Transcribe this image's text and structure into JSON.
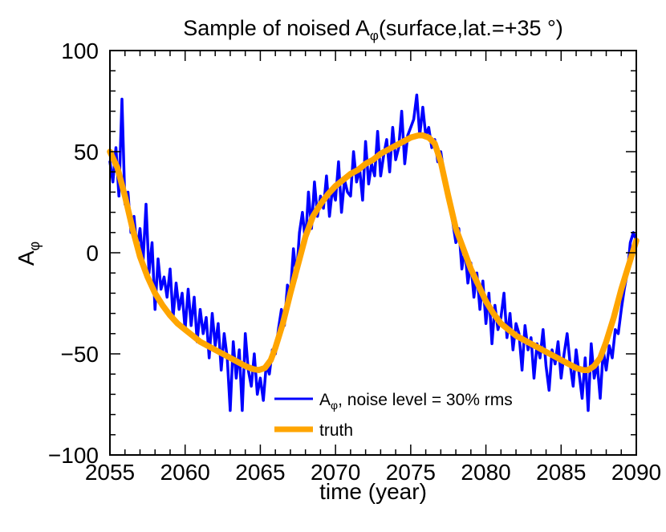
{
  "chart_data": {
    "type": "line",
    "title": "Sample of noised Aφ(surface,lat.=+35 °)",
    "title_parts": {
      "pre": "Sample of noised A",
      "sub": "φ",
      "post": "(surface,lat.=+35 °)"
    },
    "xlabel": "time (year)",
    "ylabel": {
      "main": "A",
      "sub": "φ"
    },
    "xlim": [
      2055,
      2090
    ],
    "ylim": [
      -100,
      100
    ],
    "xticks": [
      2055,
      2060,
      2065,
      2070,
      2075,
      2080,
      2085,
      2090
    ],
    "xtick_labels": [
      "2055",
      "2060",
      "2065",
      "2070",
      "2075",
      "2080",
      "2085",
      "2090"
    ],
    "yticks": [
      -100,
      -50,
      0,
      50,
      100
    ],
    "ytick_labels": [
      "−100",
      "−50",
      "0",
      "50",
      "100"
    ],
    "legend_position": "bottom-center",
    "series": [
      {
        "name": "Aφ, noise level = 30% rms",
        "legend_parts": {
          "main": "A",
          "sub": "φ",
          "rest": ", noise level = 30% rms"
        },
        "color": "#0000ff",
        "x": [
          2055.0,
          2055.2,
          2055.4,
          2055.6,
          2055.8,
          2056.0,
          2056.2,
          2056.4,
          2056.6,
          2056.8,
          2057.0,
          2057.2,
          2057.4,
          2057.6,
          2057.8,
          2058.0,
          2058.2,
          2058.4,
          2058.6,
          2058.8,
          2059.0,
          2059.2,
          2059.4,
          2059.6,
          2059.8,
          2060.0,
          2060.2,
          2060.4,
          2060.6,
          2060.8,
          2061.0,
          2061.2,
          2061.4,
          2061.6,
          2061.8,
          2062.0,
          2062.2,
          2062.4,
          2062.6,
          2062.8,
          2063.0,
          2063.2,
          2063.4,
          2063.6,
          2063.8,
          2064.0,
          2064.2,
          2064.4,
          2064.6,
          2064.8,
          2065.0,
          2065.2,
          2065.4,
          2065.6,
          2065.8,
          2066.0,
          2066.2,
          2066.4,
          2066.6,
          2066.8,
          2067.0,
          2067.2,
          2067.4,
          2067.6,
          2067.8,
          2068.0,
          2068.2,
          2068.4,
          2068.6,
          2068.8,
          2069.0,
          2069.2,
          2069.4,
          2069.6,
          2069.8,
          2070.0,
          2070.2,
          2070.4,
          2070.6,
          2070.8,
          2071.0,
          2071.2,
          2071.4,
          2071.6,
          2071.8,
          2072.0,
          2072.2,
          2072.4,
          2072.6,
          2072.8,
          2073.0,
          2073.2,
          2073.4,
          2073.6,
          2073.8,
          2074.0,
          2074.2,
          2074.4,
          2074.6,
          2074.8,
          2075.0,
          2075.2,
          2075.4,
          2075.6,
          2075.8,
          2076.0,
          2076.2,
          2076.4,
          2076.6,
          2076.8,
          2077.0,
          2077.2,
          2077.4,
          2077.6,
          2077.8,
          2078.0,
          2078.2,
          2078.4,
          2078.6,
          2078.8,
          2079.0,
          2079.2,
          2079.4,
          2079.6,
          2079.8,
          2080.0,
          2080.2,
          2080.4,
          2080.6,
          2080.8,
          2081.0,
          2081.2,
          2081.4,
          2081.6,
          2081.8,
          2082.0,
          2082.2,
          2082.4,
          2082.6,
          2082.8,
          2083.0,
          2083.2,
          2083.4,
          2083.6,
          2083.8,
          2084.0,
          2084.2,
          2084.4,
          2084.6,
          2084.8,
          2085.0,
          2085.2,
          2085.4,
          2085.6,
          2085.8,
          2086.0,
          2086.2,
          2086.4,
          2086.6,
          2086.8,
          2087.0,
          2087.2,
          2087.4,
          2087.6,
          2087.8,
          2088.0,
          2088.2,
          2088.4,
          2088.6,
          2088.8,
          2089.0,
          2089.2,
          2089.4,
          2089.6,
          2089.8,
          2090.0
        ],
        "y": [
          45,
          35,
          52,
          28,
          76,
          24,
          30,
          10,
          18,
          2,
          12,
          -5,
          24,
          -10,
          5,
          -28,
          -3,
          -18,
          -12,
          -22,
          -8,
          -32,
          -15,
          -28,
          -20,
          -38,
          -18,
          -36,
          -22,
          -44,
          -28,
          -40,
          -32,
          -52,
          -30,
          -46,
          -35,
          -58,
          -40,
          -52,
          -78,
          -44,
          -62,
          -48,
          -78,
          -40,
          -58,
          -66,
          -50,
          -70,
          -62,
          -73,
          -55,
          -60,
          -48,
          -50,
          -38,
          -28,
          -36,
          -16,
          -20,
          2,
          -12,
          10,
          20,
          5,
          30,
          12,
          35,
          18,
          28,
          22,
          38,
          18,
          32,
          26,
          45,
          20,
          36,
          30,
          28,
          50,
          35,
          42,
          26,
          55,
          34,
          44,
          38,
          60,
          38,
          48,
          56,
          40,
          62,
          46,
          52,
          70,
          44,
          58,
          62,
          66,
          78,
          58,
          72,
          58,
          62,
          52,
          56,
          45,
          50,
          40,
          30,
          22,
          15,
          5,
          12,
          -8,
          2,
          -15,
          -5,
          -22,
          -10,
          -28,
          -14,
          -35,
          -20,
          -45,
          -26,
          -38,
          -32,
          -20,
          -42,
          -30,
          -48,
          -35,
          -40,
          -58,
          -36,
          -48,
          -42,
          -62,
          -45,
          -52,
          -38,
          -56,
          -68,
          -48,
          -55,
          -44,
          -62,
          -50,
          -40,
          -55,
          -66,
          -48,
          -60,
          -72,
          -52,
          -78,
          -45,
          -62,
          -55,
          -72,
          -48,
          -58,
          -46,
          -52,
          -38,
          -40,
          -28,
          -18,
          -10,
          5,
          10,
          6
        ]
      },
      {
        "name": "truth",
        "color": "#ffa500",
        "x": [
          2055.0,
          2055.5,
          2056.0,
          2056.5,
          2057.0,
          2057.5,
          2058.0,
          2058.5,
          2059.0,
          2059.5,
          2060.0,
          2060.5,
          2061.0,
          2061.5,
          2062.0,
          2062.5,
          2063.0,
          2063.5,
          2064.0,
          2064.5,
          2064.9,
          2065.3,
          2065.7,
          2066.0,
          2066.5,
          2067.0,
          2067.5,
          2068.0,
          2068.5,
          2069.0,
          2069.5,
          2070.0,
          2070.5,
          2071.0,
          2071.5,
          2072.0,
          2072.5,
          2073.0,
          2073.5,
          2074.0,
          2074.5,
          2075.0,
          2075.5,
          2075.8,
          2076.2,
          2076.6,
          2077.0,
          2077.5,
          2078.0,
          2078.5,
          2079.0,
          2079.5,
          2080.0,
          2080.5,
          2081.0,
          2081.5,
          2082.0,
          2082.5,
          2083.0,
          2083.5,
          2084.0,
          2084.5,
          2085.0,
          2085.5,
          2086.0,
          2086.5,
          2086.8,
          2087.2,
          2087.6,
          2088.0,
          2088.5,
          2089.0,
          2089.5,
          2090.0
        ],
        "y": [
          50,
          42,
          28,
          12,
          -2,
          -12,
          -20,
          -26,
          -31,
          -35,
          -38,
          -41,
          -44,
          -46,
          -48,
          -50,
          -52,
          -54,
          -56,
          -57.5,
          -58,
          -57,
          -53,
          -47,
          -35,
          -20,
          -6,
          8,
          18,
          24,
          29,
          33,
          36,
          39,
          41,
          44,
          46,
          49,
          51,
          53,
          55,
          57,
          58,
          58,
          57,
          54,
          45,
          28,
          12,
          2,
          -8,
          -16,
          -24,
          -30,
          -35,
          -38,
          -41,
          -43,
          -45,
          -47,
          -49,
          -51,
          -53,
          -55,
          -57,
          -58,
          -58,
          -56,
          -52,
          -44,
          -32,
          -18,
          -6,
          6
        ]
      }
    ]
  }
}
